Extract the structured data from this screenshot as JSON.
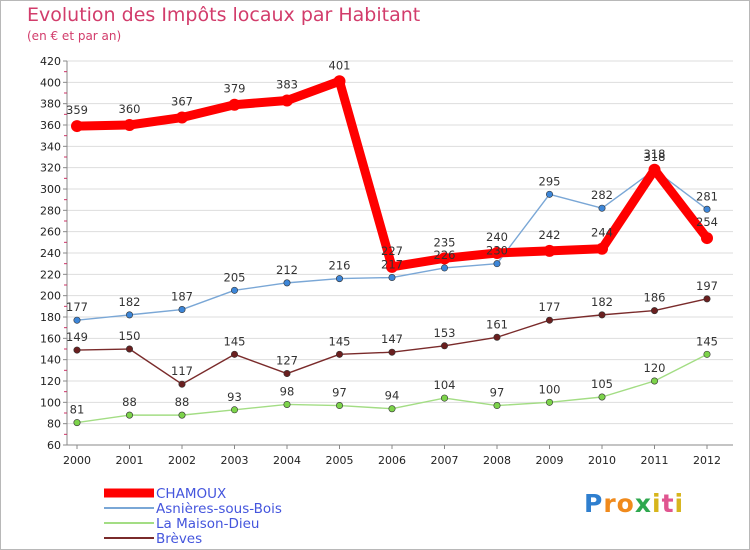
{
  "title": "Evolution des Impôts locaux par Habitant",
  "subtitle": "(en € et par an)",
  "logo": {
    "letters": [
      "P",
      "r",
      "o",
      "x",
      "i",
      "t",
      "i"
    ],
    "colors": [
      "#2f7fcf",
      "#f08a1c",
      "#f08a1c",
      "#2fa84f",
      "#d7b51c",
      "#e05590",
      "#d7b51c"
    ]
  },
  "chart_data": {
    "type": "line",
    "title": "Evolution des Impôts locaux par Habitant",
    "subtitle": "(en € et par an)",
    "xlabel": "",
    "ylabel": "",
    "x": [
      "2000",
      "2001",
      "2002",
      "2003",
      "2004",
      "2005",
      "2006",
      "2007",
      "2008",
      "2009",
      "2010",
      "2011",
      "2012"
    ],
    "ylim": [
      60,
      420
    ],
    "yticks": [
      60,
      80,
      100,
      120,
      140,
      160,
      180,
      200,
      220,
      240,
      260,
      280,
      300,
      320,
      340,
      360,
      380,
      400,
      420
    ],
    "grid": "horizontal",
    "legend_position": "bottom-left",
    "series": [
      {
        "name": "CHAMOUX",
        "color": "#ff0000",
        "marker": "#ff0000",
        "bold": true,
        "values": [
          359,
          360,
          367,
          379,
          383,
          401,
          227,
          235,
          240,
          242,
          244,
          318,
          254
        ]
      },
      {
        "name": "Asnières-sous-Bois",
        "color": "#7aa7d6",
        "marker": "#3d86d8",
        "bold": false,
        "values": [
          177,
          182,
          187,
          205,
          212,
          216,
          217,
          226,
          230,
          295,
          282,
          318,
          281
        ]
      },
      {
        "name": "La Maison-Dieu",
        "color": "#a3dd84",
        "marker": "#7cd34a",
        "bold": false,
        "values": [
          81,
          88,
          88,
          93,
          98,
          97,
          94,
          104,
          97,
          100,
          105,
          120,
          145
        ]
      },
      {
        "name": "Brèves",
        "color": "#7a2b2b",
        "marker": "#6a1f1f",
        "bold": false,
        "values": [
          149,
          150,
          117,
          145,
          127,
          145,
          147,
          153,
          161,
          177,
          182,
          186,
          197
        ]
      }
    ],
    "labels": [
      [
        "359",
        "360",
        "367",
        "379",
        "383",
        "401",
        "227",
        "235",
        "240",
        "242",
        "244",
        "318",
        "254"
      ],
      [
        "177",
        "182",
        "187",
        "205",
        "212",
        "216",
        "217",
        "226",
        "230",
        "295",
        "282",
        "318",
        "281"
      ],
      [
        "81",
        "88",
        "88",
        "93",
        "98",
        "97",
        "94",
        "104",
        "97",
        "100",
        "105",
        "120",
        "145"
      ],
      [
        "149",
        "150",
        "117",
        "145",
        "127",
        "145",
        "147",
        "153",
        "161",
        "177",
        "182",
        "186",
        "197"
      ]
    ]
  }
}
